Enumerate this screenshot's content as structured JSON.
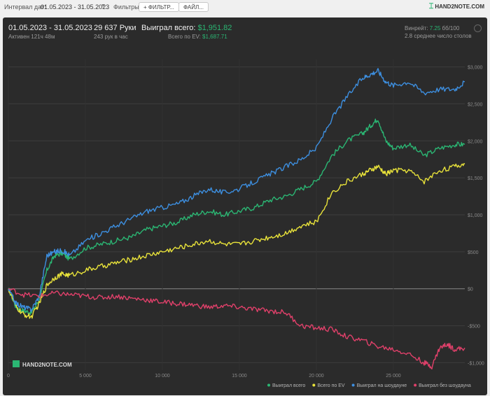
{
  "toolbar": {
    "date_label": "Интервал дат:",
    "date_value": "01.05.2023 - 31.05.2023",
    "filters_label": "Фильтры:",
    "filter_button": "ФИЛЬТР...",
    "file_button": "ФАЙЛ...",
    "brand": "HAND2NOTE.COM"
  },
  "stats": {
    "period": "01.05.2023 - 31.05.2023",
    "active": "Активен 121ч 48м",
    "hands": "29 637 Руки",
    "hands_rate": "243 рук в час",
    "won_label": "Выиграл всего:",
    "won_value": "$1,951.82",
    "ev_label": "Всего по EV:",
    "ev_value": "$1,687.71",
    "winrate_label": "Винрейт:",
    "winrate_value": "7.25",
    "winrate_suffix": "бб/100",
    "tables": "2.8 среднее число столов"
  },
  "watermark": "HAND2NOTE.COM",
  "chart_data": {
    "type": "line",
    "xlim": [
      0,
      29637
    ],
    "ylim": [
      -1100,
      3100
    ],
    "x_ticks": [
      0,
      5000,
      10000,
      15000,
      20000,
      25000
    ],
    "x_tick_labels": [
      "0",
      "5 000",
      "10 000",
      "15 000",
      "20 000",
      "25 000"
    ],
    "y_ticks": [
      -1000,
      -500,
      0,
      500,
      1000,
      1500,
      2000,
      2500,
      3000
    ],
    "y_tick_labels": [
      "-$1,000",
      "-$500",
      "$0",
      "$500",
      "$1,000",
      "$1,500",
      "$2,000",
      "$2,500",
      "$3,000"
    ],
    "legend_position": "bottom-right",
    "series": [
      {
        "name": "Выиграл всего",
        "color": "#2bb673",
        "x": [
          0,
          500,
          1000,
          1500,
          2000,
          2500,
          3000,
          3500,
          4000,
          5000,
          6000,
          7000,
          8000,
          9000,
          10000,
          11000,
          12000,
          13000,
          14000,
          15000,
          16000,
          17000,
          18000,
          19000,
          20000,
          21000,
          22000,
          23000,
          23500,
          24000,
          24500,
          25000,
          26000,
          27000,
          28000,
          29000,
          29637
        ],
        "values": [
          0,
          -250,
          -300,
          -320,
          -150,
          250,
          450,
          480,
          400,
          550,
          600,
          650,
          700,
          800,
          850,
          900,
          1000,
          1050,
          1000,
          1050,
          1100,
          1200,
          1250,
          1350,
          1450,
          1800,
          2000,
          2100,
          2200,
          2300,
          2000,
          1900,
          1950,
          1800,
          1900,
          1950,
          1952
        ]
      },
      {
        "name": "Всего по EV",
        "color": "#e8e23a",
        "x": [
          0,
          500,
          1000,
          1500,
          2000,
          2500,
          3000,
          3500,
          4000,
          5000,
          6000,
          7000,
          8000,
          9000,
          10000,
          11000,
          12000,
          13000,
          14000,
          15000,
          16000,
          17000,
          18000,
          19000,
          20000,
          21000,
          22000,
          23000,
          23500,
          24000,
          24500,
          25000,
          26000,
          27000,
          28000,
          29000,
          29637
        ],
        "values": [
          0,
          -250,
          -350,
          -380,
          -200,
          50,
          150,
          200,
          180,
          250,
          300,
          350,
          400,
          450,
          500,
          550,
          600,
          650,
          600,
          600,
          650,
          700,
          750,
          850,
          900,
          1300,
          1450,
          1550,
          1600,
          1650,
          1550,
          1600,
          1600,
          1450,
          1600,
          1650,
          1688
        ]
      },
      {
        "name": "Выиграл на шоудауне",
        "color": "#3d8fe0",
        "x": [
          0,
          500,
          1000,
          1500,
          2000,
          2500,
          3000,
          3500,
          4000,
          5000,
          6000,
          7000,
          8000,
          9000,
          10000,
          11000,
          12000,
          13000,
          14000,
          15000,
          16000,
          17000,
          18000,
          19000,
          20000,
          21000,
          22000,
          23000,
          23500,
          24000,
          24500,
          25000,
          26000,
          27000,
          28000,
          29000,
          29637
        ],
        "values": [
          0,
          -200,
          -250,
          -280,
          -100,
          450,
          500,
          520,
          450,
          650,
          750,
          850,
          950,
          1050,
          1100,
          1150,
          1250,
          1350,
          1300,
          1350,
          1450,
          1550,
          1650,
          1750,
          1900,
          2300,
          2600,
          2850,
          2900,
          2950,
          2800,
          2750,
          2800,
          2650,
          2700,
          2700,
          2800
        ]
      },
      {
        "name": "Выиграл без шоудауна",
        "color": "#e0406a",
        "x": [
          0,
          1000,
          2000,
          3000,
          4000,
          5000,
          6000,
          7000,
          8000,
          9000,
          10000,
          11000,
          12000,
          13000,
          14000,
          15000,
          16000,
          17000,
          18000,
          19000,
          20000,
          21000,
          22000,
          23000,
          24000,
          25000,
          26000,
          27000,
          27500,
          28000,
          28500,
          29000,
          29637
        ],
        "values": [
          0,
          -80,
          -100,
          -60,
          -80,
          -100,
          -120,
          -100,
          -130,
          -150,
          -180,
          -200,
          -220,
          -250,
          -230,
          -250,
          -280,
          -300,
          -320,
          -500,
          -530,
          -550,
          -650,
          -700,
          -780,
          -820,
          -880,
          -1000,
          -1050,
          -800,
          -750,
          -820,
          -800
        ]
      }
    ]
  }
}
